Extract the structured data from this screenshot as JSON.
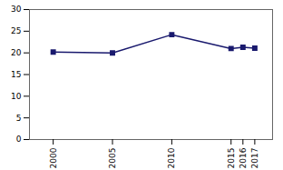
{
  "chart_data": {
    "type": "line",
    "x": [
      2000,
      2005,
      2010,
      2015,
      2016,
      2017
    ],
    "values": [
      20.2,
      20.0,
      24.2,
      21.0,
      21.3,
      21.1
    ],
    "color": "#1a1a6e",
    "marker": "square",
    "xlim": [
      1998,
      2018.5
    ],
    "xticks": [
      2000,
      2005,
      2010,
      2015,
      2016,
      2017
    ],
    "ylim": [
      0,
      30
    ],
    "yticks": [
      0,
      5,
      10,
      15,
      20,
      25,
      30
    ],
    "grid": false
  }
}
